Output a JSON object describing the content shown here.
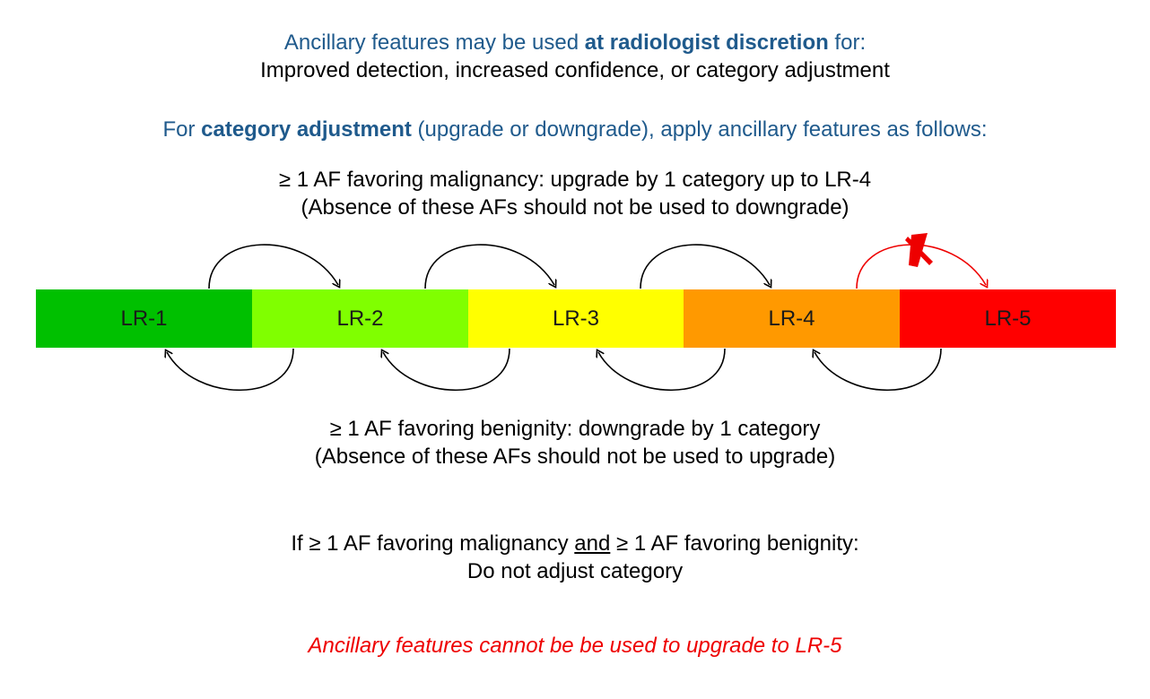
{
  "intro": {
    "prefix": "Ancillary features may be used ",
    "emphasis": "at radiologist discretion",
    "suffix": " for:",
    "line2": "Improved detection, increased confidence, or category adjustment"
  },
  "adjustment": {
    "prefix": "For ",
    "emphasis": "category adjustment",
    "suffix": " (upgrade or downgrade), apply ancillary features as follows:"
  },
  "upgrade_rule": {
    "line1": "≥ 1 AF favoring malignancy: upgrade by 1 category up to LR-4",
    "line2": "(Absence of these AFs should not be used to downgrade)"
  },
  "categories": [
    {
      "label": "LR-1",
      "color": "#00c000"
    },
    {
      "label": "LR-2",
      "color": "#80ff00"
    },
    {
      "label": "LR-3",
      "color": "#ffff00"
    },
    {
      "label": "LR-4",
      "color": "#ff9900"
    },
    {
      "label": "LR-5",
      "color": "#ff0000"
    }
  ],
  "downgrade_rule": {
    "line1": "≥ 1 AF favoring benignity: downgrade by 1 category",
    "line2": "(Absence of these AFs should not be used to upgrade)"
  },
  "conflict_rule": {
    "prefix": "If ≥ 1 AF favoring malignancy ",
    "underlined": "and",
    "suffix": " ≥ 1 AF favoring benignity:",
    "line2": "Do not adjust category"
  },
  "warning": "Ancillary features cannot be be used to upgrade to LR-5",
  "colors": {
    "heading_blue": "#1f5a8c",
    "warning_red": "#ee0000",
    "arrow_black": "#000000",
    "blocked_red": "#ee0000"
  },
  "icons": {
    "blocked_marker": "x-mark-icon"
  }
}
